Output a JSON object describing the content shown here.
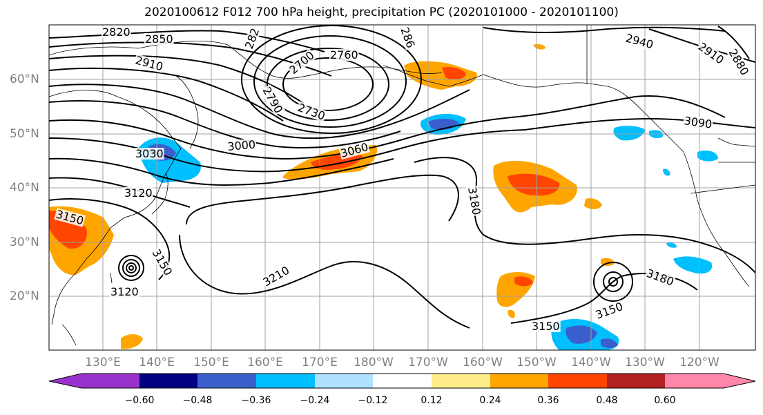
{
  "title": "2020100612 F012 700 hPa height, precipitation PC (2020101000 - 2020101100)",
  "lat_labels": [
    "60°N",
    "50°N",
    "40°N",
    "30°N",
    "20°N"
  ],
  "lon_labels": [
    "130°E",
    "140°E",
    "150°E",
    "160°E",
    "170°E",
    "180°W",
    "170°W",
    "160°W",
    "150°W",
    "140°W",
    "130°W",
    "120°W"
  ],
  "contour_labels": [
    "2820",
    "2850",
    "2910",
    "282",
    "286",
    "2940",
    "2910",
    "2880",
    "2760",
    "2700",
    "2790",
    "2730",
    "3090",
    "3030",
    "3000",
    "3060",
    "3120",
    "3180",
    "3150",
    "3150",
    "3210",
    "3120",
    "3180",
    "3150",
    "3150"
  ],
  "colorbar": {
    "ticks": [
      "−0.60",
      "−0.48",
      "−0.36",
      "−0.24",
      "−0.12",
      "0.12",
      "0.24",
      "0.36",
      "0.48",
      "0.60"
    ],
    "colors": [
      "#9932cc",
      "#000080",
      "#3a5fcd",
      "#00bfff",
      "#b0e2ff",
      "#ffffff",
      "#ffec8b",
      "#ffa500",
      "#ff4500",
      "#b22222",
      "#ff88aa"
    ]
  },
  "colors": {
    "pos_low": "#ffec8b",
    "pos_mid": "#ffa500",
    "pos_high": "#ff4500",
    "neg_low": "#b0e2ff",
    "neg_mid": "#00bfff",
    "neg_high": "#3a5fcd",
    "axis_label": "#808080",
    "grid": "#a0a0a0"
  }
}
